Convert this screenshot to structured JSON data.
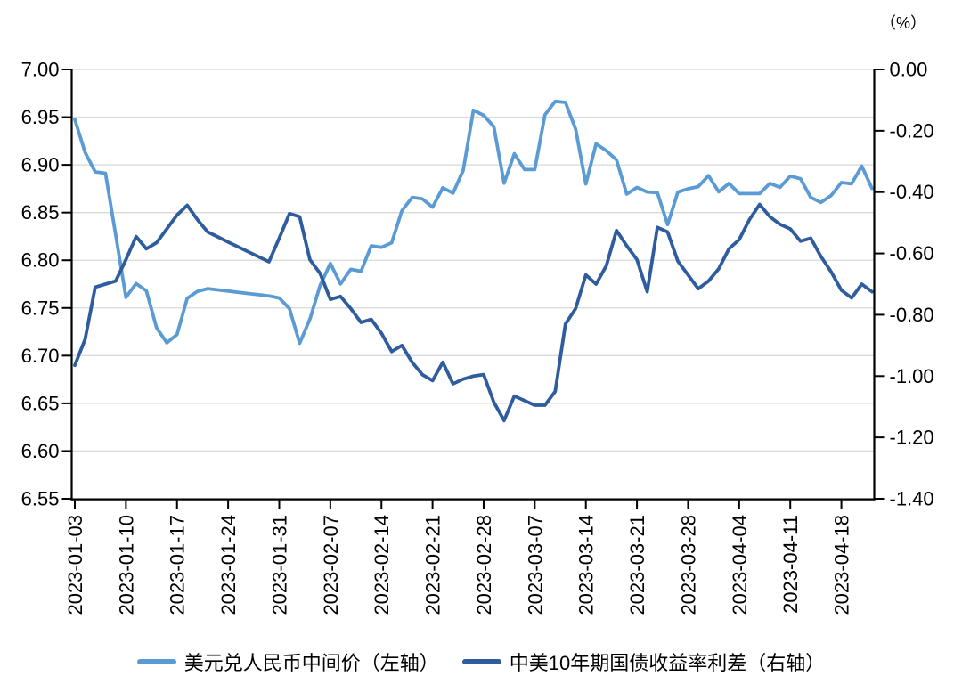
{
  "page": {
    "background": "#ffffff"
  },
  "legend": {
    "items": [
      {
        "label": "美元兑人民币中间价（左轴）",
        "color": "#5B9BD5"
      },
      {
        "label": "中美10年期国债收益率利差（右轴）",
        "color": "#2E5C9E"
      }
    ]
  },
  "chart_data": {
    "type": "line",
    "title": "",
    "grid": "horizontal",
    "grid_color": "#D9D9D9",
    "axis_color": "#000000",
    "x": [
      "2023-01-03",
      "2023-01-04",
      "2023-01-05",
      "2023-01-06",
      "2023-01-09",
      "2023-01-10",
      "2023-01-11",
      "2023-01-12",
      "2023-01-13",
      "2023-01-16",
      "2023-01-17",
      "2023-01-18",
      "2023-01-19",
      "2023-01-20",
      "2023-01-23",
      "2023-01-24",
      "2023-01-25",
      "2023-01-26",
      "2023-01-27",
      "2023-01-30",
      "2023-01-31",
      "2023-02-01",
      "2023-02-02",
      "2023-02-03",
      "2023-02-06",
      "2023-02-07",
      "2023-02-08",
      "2023-02-09",
      "2023-02-10",
      "2023-02-13",
      "2023-02-14",
      "2023-02-15",
      "2023-02-16",
      "2023-02-17",
      "2023-02-20",
      "2023-02-21",
      "2023-02-22",
      "2023-02-23",
      "2023-02-24",
      "2023-02-27",
      "2023-02-28",
      "2023-03-01",
      "2023-03-02",
      "2023-03-03",
      "2023-03-06",
      "2023-03-07",
      "2023-03-08",
      "2023-03-09",
      "2023-03-10",
      "2023-03-13",
      "2023-03-14",
      "2023-03-15",
      "2023-03-16",
      "2023-03-17",
      "2023-03-20",
      "2023-03-21",
      "2023-03-22",
      "2023-03-23",
      "2023-03-24",
      "2023-03-27",
      "2023-03-28",
      "2023-03-29",
      "2023-03-30",
      "2023-03-31",
      "2023-04-03",
      "2023-04-04",
      "2023-04-05",
      "2023-04-06",
      "2023-04-07",
      "2023-04-10",
      "2023-04-11",
      "2023-04-12",
      "2023-04-13",
      "2023-04-14",
      "2023-04-17",
      "2023-04-18",
      "2023-04-19",
      "2023-04-20",
      "2023-04-21"
    ],
    "x_tick_labels": [
      "2023-01-03",
      "2023-01-10",
      "2023-01-17",
      "2023-01-24",
      "2023-01-31",
      "2023-02-07",
      "2023-02-14",
      "2023-02-21",
      "2023-02-28",
      "2023-03-07",
      "2023-03-14",
      "2023-03-21",
      "2023-03-28",
      "2023-04-04",
      "2023-04-11",
      "2023-04-18"
    ],
    "left_axis": {
      "min": 6.55,
      "max": 7.0,
      "tick_labels": [
        "7.00",
        "6.95",
        "6.90",
        "6.85",
        "6.80",
        "6.75",
        "6.70",
        "6.65",
        "6.60",
        "6.55"
      ]
    },
    "right_axis": {
      "min": -1.4,
      "max": 0.0,
      "unit": "（%）",
      "tick_labels": [
        "0.00",
        "-0.20",
        "-0.40",
        "-0.60",
        "-0.80",
        "-1.00",
        "-1.20",
        "-1.40"
      ]
    },
    "series": [
      {
        "name": "美元兑人民币中间价（左轴）",
        "axis": "left",
        "color": "#5B9BD5",
        "values": [
          6.9475,
          6.9131,
          6.8926,
          6.8912,
          6.8265,
          6.7611,
          6.7756,
          6.768,
          6.7292,
          6.7135,
          6.7222,
          6.7602,
          6.7674,
          6.7702,
          6.7689,
          6.7677,
          6.7664,
          6.7651,
          6.7639,
          6.7626,
          6.7604,
          6.7492,
          6.713,
          6.7382,
          6.7737,
          6.7967,
          6.7752,
          6.7905,
          6.7884,
          6.8151,
          6.8136,
          6.8183,
          6.8519,
          6.8659,
          6.8643,
          6.8557,
          6.8759,
          6.8704,
          6.8942,
          6.9572,
          6.9519,
          6.94,
          6.8808,
          6.9117,
          6.8951,
          6.8951,
          6.9525,
          6.9666,
          6.9655,
          6.9375,
          6.88,
          6.922,
          6.9149,
          6.9052,
          6.8694,
          6.8763,
          6.8715,
          6.8709,
          6.8374,
          6.8714,
          6.8749,
          6.8771,
          6.8886,
          6.8717,
          6.8805,
          6.8699,
          6.8699,
          6.8699,
          6.8805,
          6.8764,
          6.8882,
          6.8854,
          6.8658,
          6.8606,
          6.8679,
          6.8814,
          6.8802,
          6.8987,
          6.8752
        ]
      },
      {
        "name": "中美10年期国债收益率利差（右轴）",
        "axis": "right",
        "color": "#2E5C9E",
        "values": [
          -0.965,
          -0.88,
          -0.71,
          -0.7,
          -0.69,
          -0.62,
          -0.545,
          -0.585,
          -0.565,
          -0.52,
          -0.475,
          -0.443,
          -0.49,
          -0.53,
          -0.546,
          -0.563,
          -0.579,
          -0.595,
          -0.611,
          -0.627,
          -0.55,
          -0.47,
          -0.48,
          -0.62,
          -0.665,
          -0.75,
          -0.74,
          -0.78,
          -0.825,
          -0.815,
          -0.86,
          -0.92,
          -0.9,
          -0.955,
          -0.995,
          -1.015,
          -0.955,
          -1.025,
          -1.01,
          -1.0,
          -0.995,
          -1.085,
          -1.145,
          -1.065,
          -1.08,
          -1.095,
          -1.095,
          -1.05,
          -0.83,
          -0.78,
          -0.67,
          -0.7,
          -0.64,
          -0.525,
          -0.575,
          -0.62,
          -0.725,
          -0.515,
          -0.53,
          -0.625,
          -0.67,
          -0.715,
          -0.69,
          -0.65,
          -0.585,
          -0.555,
          -0.49,
          -0.44,
          -0.48,
          -0.505,
          -0.52,
          -0.56,
          -0.55,
          -0.61,
          -0.66,
          -0.72,
          -0.745,
          -0.7,
          -0.725
        ]
      }
    ]
  }
}
